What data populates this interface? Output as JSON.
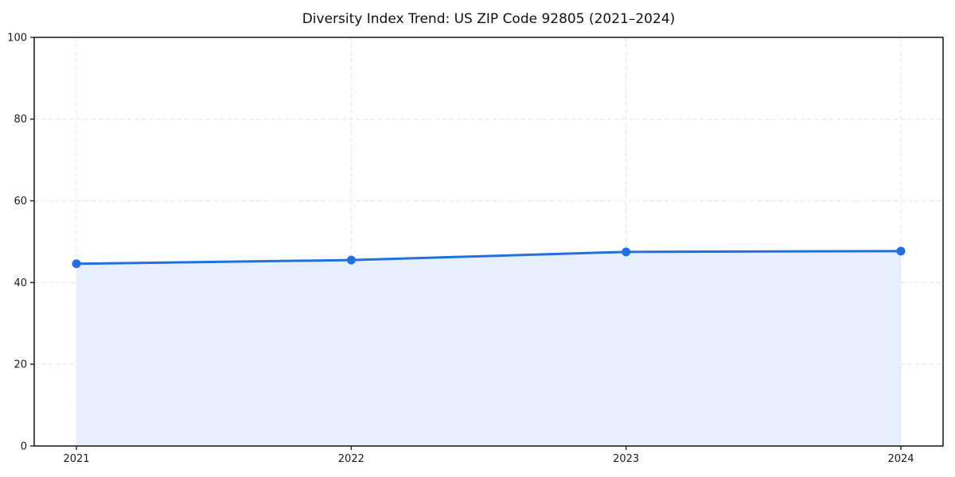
{
  "chart_data": {
    "type": "line",
    "title": "Diversity Index Trend: US ZIP Code 92805 (2021–2024)",
    "categories": [
      "2021",
      "2022",
      "2023",
      "2024"
    ],
    "series": [
      {
        "name": "Diversity Index",
        "values": [
          44.6,
          45.5,
          47.5,
          47.7
        ]
      }
    ],
    "xlabel": "",
    "ylabel": "",
    "ylim": [
      0,
      100
    ],
    "yticks": [
      0,
      20,
      40,
      60,
      80,
      100
    ],
    "grid": "on",
    "grid_style": "dashed",
    "legend_position": "none",
    "marker": "circle",
    "area_fill": true,
    "colors": {
      "line": "#2170e0",
      "marker": "#2170e0",
      "area_fill": "#e7effc",
      "grid": "#e3e3e3",
      "axis": "#222222",
      "text": "#1a1a1a",
      "background": "#ffffff"
    }
  }
}
